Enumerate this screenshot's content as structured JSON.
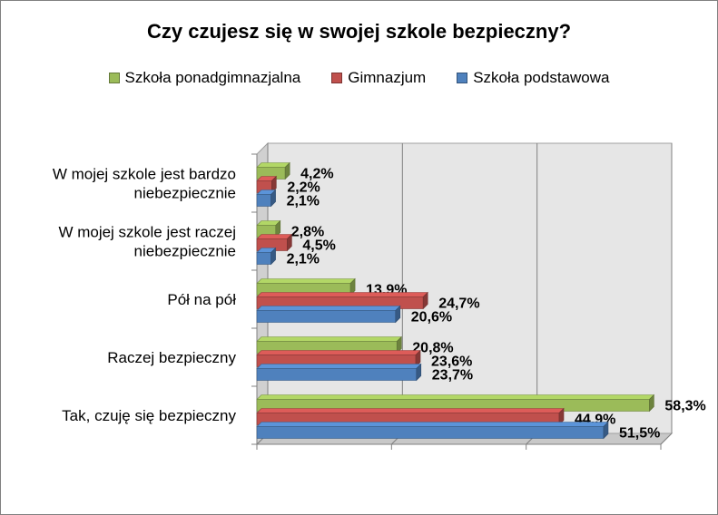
{
  "chart_data": {
    "type": "bar",
    "orientation": "horizontal",
    "title": "Czy czujesz się w swojej szkole bezpieczny?",
    "categories": [
      [
        "W mojej szkole jest bardzo",
        "niebezpiecznie"
      ],
      [
        "W mojej szkole jest raczej",
        "niebezpiecznie"
      ],
      [
        "Pół na pół"
      ],
      [
        "Raczej bezpieczny"
      ],
      [
        "Tak, czuję się bezpieczny"
      ]
    ],
    "series": [
      {
        "name": "Szkoła ponadgimnazjalna",
        "color": "#9BBB59",
        "values": [
          4.2,
          2.8,
          13.9,
          20.8,
          58.3
        ],
        "labels": [
          "4,2%",
          "2,8%",
          "13,9%",
          "20,8%",
          "58,3%"
        ]
      },
      {
        "name": "Gimnazjum",
        "color": "#C0504D",
        "values": [
          2.2,
          4.5,
          24.7,
          23.6,
          44.9
        ],
        "labels": [
          "2,2%",
          "4,5%",
          "24,7%",
          "23,6%",
          "44,9%"
        ]
      },
      {
        "name": "Szkoła podstawowa",
        "color": "#4F81BD",
        "values": [
          2.1,
          2.1,
          20.6,
          23.7,
          51.5
        ],
        "labels": [
          "2,1%",
          "2,1%",
          "20,6%",
          "23,7%",
          "51,5%"
        ]
      }
    ],
    "xlim": [
      0,
      60
    ],
    "grid": true,
    "legend_position": "top"
  }
}
